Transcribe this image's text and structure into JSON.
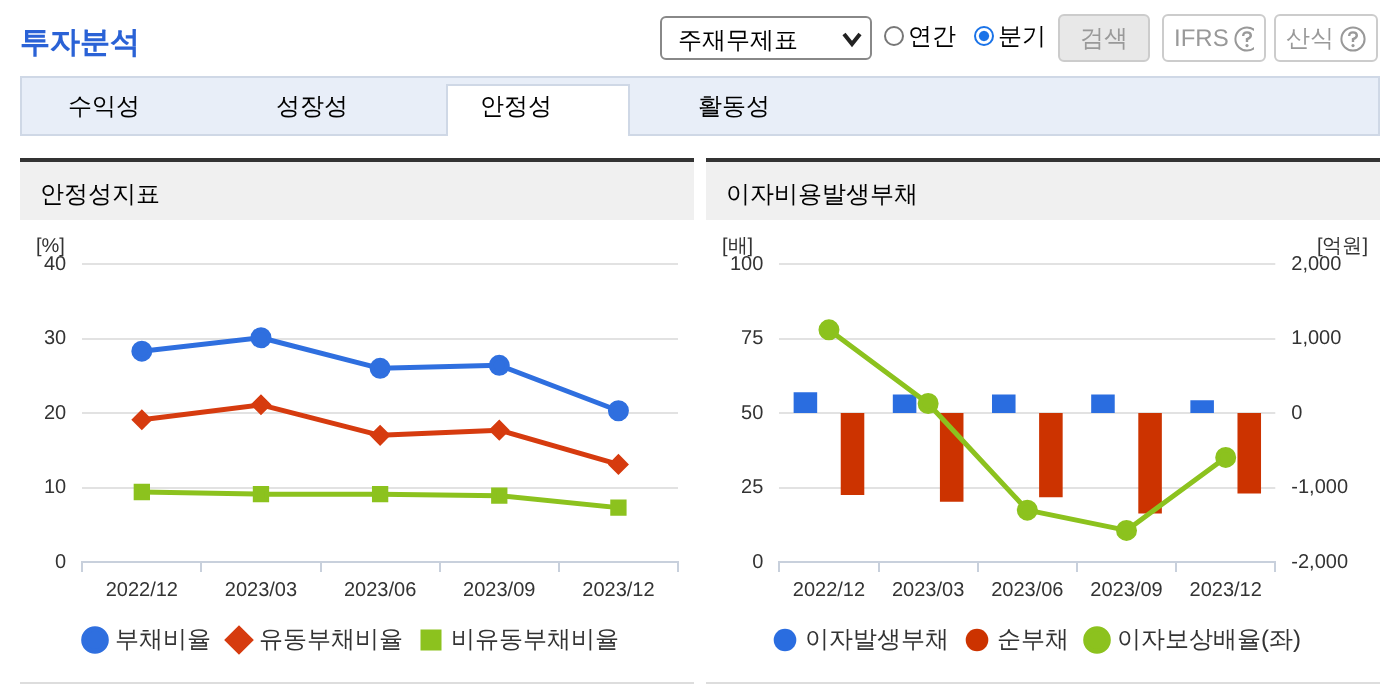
{
  "chart_data": [
    {
      "type": "other",
      "annotations": [
        "투자분석",
        "주재무제표",
        "연간",
        "분기",
        "검색",
        "IFRS",
        "산식",
        "수익성",
        "성장성",
        "안정성",
        "활동성"
      ]
    },
    {
      "type": "line",
      "title": "안정성지표",
      "ylabel": "[%]",
      "categories": [
        "2022/12",
        "2023/03",
        "2023/06",
        "2023/09",
        "2023/12"
      ],
      "series": [
        {
          "name": "부채비율",
          "color": "#2f6fdf",
          "marker": "circle",
          "values": [
            28.3,
            30.1,
            26.0,
            26.4,
            20.3
          ]
        },
        {
          "name": "유동부채비율",
          "color": "#d63b0f",
          "marker": "diamond",
          "values": [
            19.1,
            21.1,
            17.0,
            17.7,
            13.1
          ]
        },
        {
          "name": "비유동부채비율",
          "color": "#8cc21e",
          "marker": "square",
          "values": [
            9.4,
            9.1,
            9.1,
            8.9,
            7.3
          ]
        }
      ],
      "ylim": [
        0,
        40
      ],
      "yticks": [
        0,
        10,
        20,
        30,
        40
      ],
      "grid": "y",
      "legend": "bottom"
    },
    {
      "type": "bar",
      "title": "이자비용발생부채",
      "ylabel": "[배]",
      "y2label": "[억원]",
      "categories": [
        "2022/12",
        "2023/03",
        "2023/06",
        "2023/09",
        "2023/12"
      ],
      "series": [
        {
          "name": "이자발생부채",
          "color": "#2a6de0",
          "axis": "y2",
          "values": [
            280,
            250,
            250,
            250,
            170
          ]
        },
        {
          "name": "순부채",
          "color": "#cc3300",
          "axis": "y2",
          "values": [
            -1100,
            -1190,
            -1130,
            -1350,
            -1080
          ]
        },
        {
          "name": "이자보상배율(좌)",
          "type": "line",
          "color": "#8cc21e",
          "marker": "circle",
          "values": [
            77.9,
            53.2,
            17.4,
            10.6,
            35.1
          ]
        }
      ],
      "ylim": [
        0,
        100
      ],
      "yticks": [
        0,
        25,
        50,
        75,
        100
      ],
      "y2lim": [
        -2000,
        2000
      ],
      "y2ticks": [
        {
          "value": -2000,
          "label": "-2,000"
        },
        {
          "value": -1000,
          "label": "-1,000"
        },
        0,
        {
          "value": 1000,
          "label": "1,000"
        },
        {
          "value": 2000,
          "label": "2,000"
        }
      ],
      "grid": "y",
      "legend": "bottom"
    }
  ]
}
